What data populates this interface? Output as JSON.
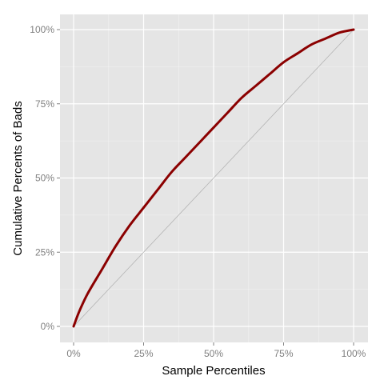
{
  "chart_data": {
    "type": "line",
    "xlabel": "Sample Percentiles",
    "ylabel": "Cumulative Percents of Bads",
    "xlim": [
      0,
      100
    ],
    "ylim": [
      0,
      100
    ],
    "x_ticks": [
      "0%",
      "25%",
      "50%",
      "75%",
      "100%"
    ],
    "y_ticks": [
      "0%",
      "25%",
      "50%",
      "75%",
      "100%"
    ],
    "grid": true,
    "series": [
      {
        "color": "#8b0000",
        "x": [
          0,
          2,
          5,
          10,
          15,
          20,
          25,
          30,
          35,
          40,
          45,
          50,
          55,
          60,
          65,
          70,
          75,
          80,
          85,
          90,
          95,
          100
        ],
        "y": [
          0,
          5,
          11,
          19,
          27,
          34,
          40,
          46,
          52,
          57,
          62,
          67,
          72,
          77,
          81,
          85,
          89,
          92,
          95,
          97,
          99,
          100
        ]
      },
      {
        "color": "#b3b3b3",
        "x": [
          0,
          100
        ],
        "y": [
          0,
          100
        ]
      }
    ]
  }
}
